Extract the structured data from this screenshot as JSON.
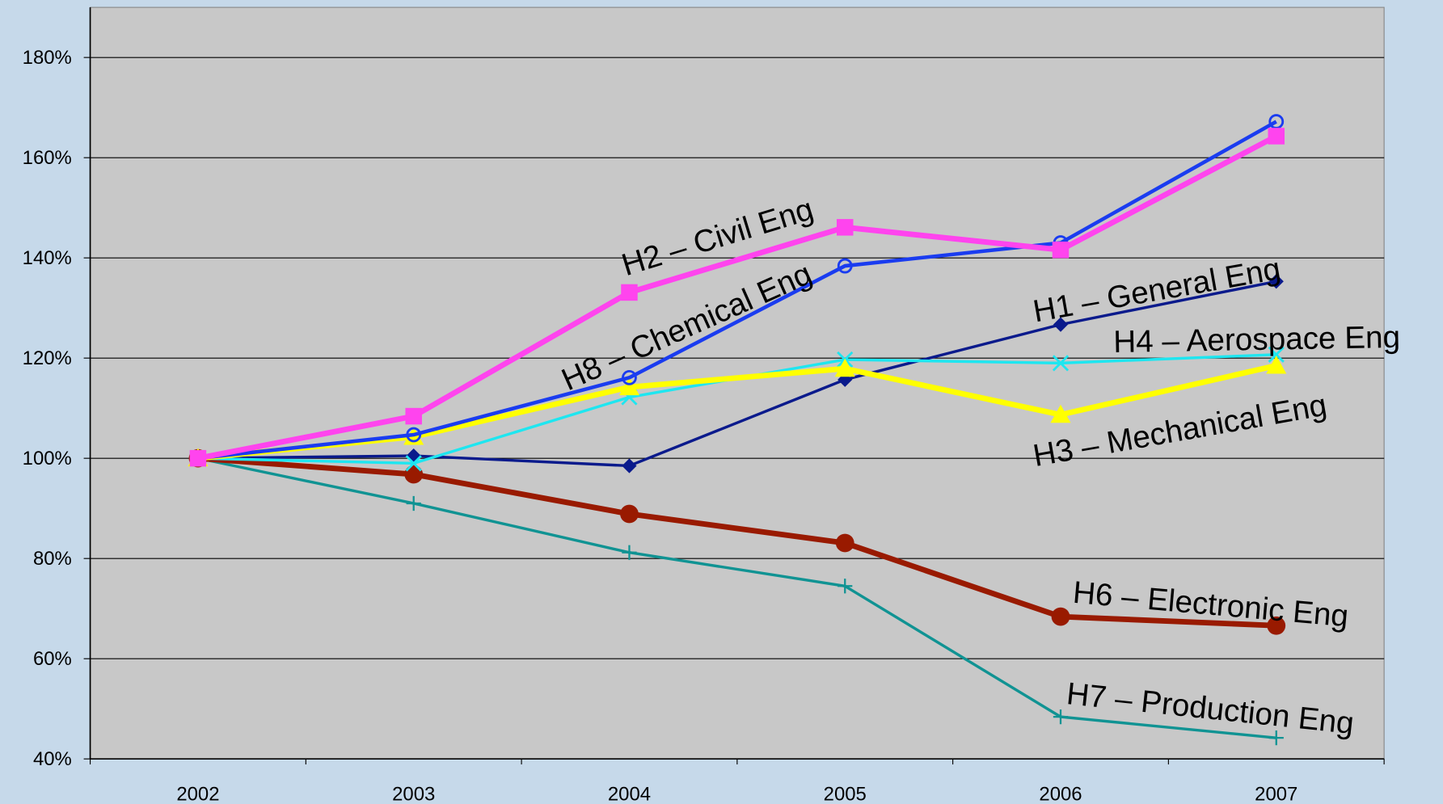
{
  "chart_data": {
    "type": "line",
    "categories": [
      "2002",
      "2003",
      "2004",
      "2005",
      "2006",
      "2007"
    ],
    "ylim": [
      40,
      190
    ],
    "yticks": [
      {
        "value": 40,
        "label": "40%"
      },
      {
        "value": 60,
        "label": "60%"
      },
      {
        "value": 80,
        "label": "80%"
      },
      {
        "value": 100,
        "label": "100%"
      },
      {
        "value": 120,
        "label": "120%"
      },
      {
        "value": 140,
        "label": "140%"
      },
      {
        "value": 160,
        "label": "160%"
      },
      {
        "value": 180,
        "label": "180%"
      }
    ],
    "grid": true,
    "series": [
      {
        "name": "H7 – Production Eng",
        "color": "#109393",
        "values": [
          100,
          91.0,
          81.2,
          74.5,
          48.4,
          44.2
        ]
      },
      {
        "name": "H6 – Electronic Eng",
        "color": "#991a00",
        "values": [
          100,
          96.8,
          88.9,
          83.1,
          68.4,
          66.6
        ]
      },
      {
        "name": "H1 – General Eng",
        "color": "#0a1a8c",
        "values": [
          100,
          100.5,
          98.5,
          115.7,
          126.7,
          135.3
        ]
      },
      {
        "name": "H4 – Aerospace Eng",
        "color": "#1ee6f0",
        "values": [
          100,
          99.0,
          112.2,
          119.7,
          119.0,
          120.7
        ]
      },
      {
        "name": "H3 – Mechanical Eng",
        "color": "#ffff00",
        "values": [
          100,
          104.3,
          114.2,
          117.9,
          108.7,
          118.5
        ]
      },
      {
        "name": "H8 – Chemical Eng",
        "color": "#1a3cf0",
        "values": [
          100,
          104.7,
          116.1,
          138.4,
          143.0,
          167.2
        ]
      },
      {
        "name": "H2 – Civil Eng",
        "color": "#ff44ee",
        "values": [
          100,
          108.4,
          133.1,
          146.1,
          141.6,
          164.3
        ]
      }
    ]
  }
}
